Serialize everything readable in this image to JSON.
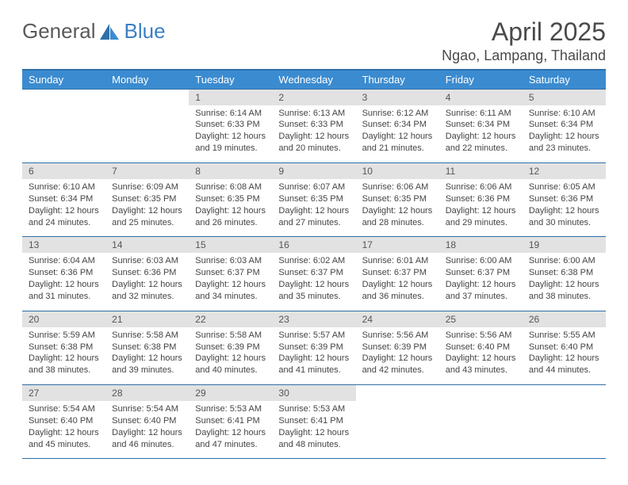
{
  "brand": {
    "word1": "General",
    "word2": "Blue"
  },
  "title": "April 2025",
  "location": "Ngao, Lampang, Thailand",
  "colors": {
    "header_bg": "#3b8bd0",
    "header_text": "#ffffff",
    "rule": "#2f6fa8",
    "daynum_bg": "#e2e2e2",
    "body_text": "#444444",
    "title_text": "#4a4a4a",
    "logo_gray": "#5a5a5a",
    "logo_blue": "#3b7fc4"
  },
  "layout": {
    "num_columns": 7,
    "num_rows": 5,
    "font_family": "Arial",
    "daynum_fontsize": 12,
    "body_fontsize": 11,
    "header_fontsize": 13,
    "title_fontsize": 32,
    "location_fontsize": 18
  },
  "weekdays": [
    "Sunday",
    "Monday",
    "Tuesday",
    "Wednesday",
    "Thursday",
    "Friday",
    "Saturday"
  ],
  "days": [
    {
      "n": "",
      "sr": "",
      "ss": "",
      "dl": ""
    },
    {
      "n": "",
      "sr": "",
      "ss": "",
      "dl": ""
    },
    {
      "n": "1",
      "sr": "6:14 AM",
      "ss": "6:33 PM",
      "dl": "12 hours and 19 minutes."
    },
    {
      "n": "2",
      "sr": "6:13 AM",
      "ss": "6:33 PM",
      "dl": "12 hours and 20 minutes."
    },
    {
      "n": "3",
      "sr": "6:12 AM",
      "ss": "6:34 PM",
      "dl": "12 hours and 21 minutes."
    },
    {
      "n": "4",
      "sr": "6:11 AM",
      "ss": "6:34 PM",
      "dl": "12 hours and 22 minutes."
    },
    {
      "n": "5",
      "sr": "6:10 AM",
      "ss": "6:34 PM",
      "dl": "12 hours and 23 minutes."
    },
    {
      "n": "6",
      "sr": "6:10 AM",
      "ss": "6:34 PM",
      "dl": "12 hours and 24 minutes."
    },
    {
      "n": "7",
      "sr": "6:09 AM",
      "ss": "6:35 PM",
      "dl": "12 hours and 25 minutes."
    },
    {
      "n": "8",
      "sr": "6:08 AM",
      "ss": "6:35 PM",
      "dl": "12 hours and 26 minutes."
    },
    {
      "n": "9",
      "sr": "6:07 AM",
      "ss": "6:35 PM",
      "dl": "12 hours and 27 minutes."
    },
    {
      "n": "10",
      "sr": "6:06 AM",
      "ss": "6:35 PM",
      "dl": "12 hours and 28 minutes."
    },
    {
      "n": "11",
      "sr": "6:06 AM",
      "ss": "6:36 PM",
      "dl": "12 hours and 29 minutes."
    },
    {
      "n": "12",
      "sr": "6:05 AM",
      "ss": "6:36 PM",
      "dl": "12 hours and 30 minutes."
    },
    {
      "n": "13",
      "sr": "6:04 AM",
      "ss": "6:36 PM",
      "dl": "12 hours and 31 minutes."
    },
    {
      "n": "14",
      "sr": "6:03 AM",
      "ss": "6:36 PM",
      "dl": "12 hours and 32 minutes."
    },
    {
      "n": "15",
      "sr": "6:03 AM",
      "ss": "6:37 PM",
      "dl": "12 hours and 34 minutes."
    },
    {
      "n": "16",
      "sr": "6:02 AM",
      "ss": "6:37 PM",
      "dl": "12 hours and 35 minutes."
    },
    {
      "n": "17",
      "sr": "6:01 AM",
      "ss": "6:37 PM",
      "dl": "12 hours and 36 minutes."
    },
    {
      "n": "18",
      "sr": "6:00 AM",
      "ss": "6:37 PM",
      "dl": "12 hours and 37 minutes."
    },
    {
      "n": "19",
      "sr": "6:00 AM",
      "ss": "6:38 PM",
      "dl": "12 hours and 38 minutes."
    },
    {
      "n": "20",
      "sr": "5:59 AM",
      "ss": "6:38 PM",
      "dl": "12 hours and 38 minutes."
    },
    {
      "n": "21",
      "sr": "5:58 AM",
      "ss": "6:38 PM",
      "dl": "12 hours and 39 minutes."
    },
    {
      "n": "22",
      "sr": "5:58 AM",
      "ss": "6:39 PM",
      "dl": "12 hours and 40 minutes."
    },
    {
      "n": "23",
      "sr": "5:57 AM",
      "ss": "6:39 PM",
      "dl": "12 hours and 41 minutes."
    },
    {
      "n": "24",
      "sr": "5:56 AM",
      "ss": "6:39 PM",
      "dl": "12 hours and 42 minutes."
    },
    {
      "n": "25",
      "sr": "5:56 AM",
      "ss": "6:40 PM",
      "dl": "12 hours and 43 minutes."
    },
    {
      "n": "26",
      "sr": "5:55 AM",
      "ss": "6:40 PM",
      "dl": "12 hours and 44 minutes."
    },
    {
      "n": "27",
      "sr": "5:54 AM",
      "ss": "6:40 PM",
      "dl": "12 hours and 45 minutes."
    },
    {
      "n": "28",
      "sr": "5:54 AM",
      "ss": "6:40 PM",
      "dl": "12 hours and 46 minutes."
    },
    {
      "n": "29",
      "sr": "5:53 AM",
      "ss": "6:41 PM",
      "dl": "12 hours and 47 minutes."
    },
    {
      "n": "30",
      "sr": "5:53 AM",
      "ss": "6:41 PM",
      "dl": "12 hours and 48 minutes."
    },
    {
      "n": "",
      "sr": "",
      "ss": "",
      "dl": ""
    },
    {
      "n": "",
      "sr": "",
      "ss": "",
      "dl": ""
    },
    {
      "n": "",
      "sr": "",
      "ss": "",
      "dl": ""
    }
  ],
  "labels": {
    "sunrise": "Sunrise:",
    "sunset": "Sunset:",
    "daylight": "Daylight:"
  }
}
